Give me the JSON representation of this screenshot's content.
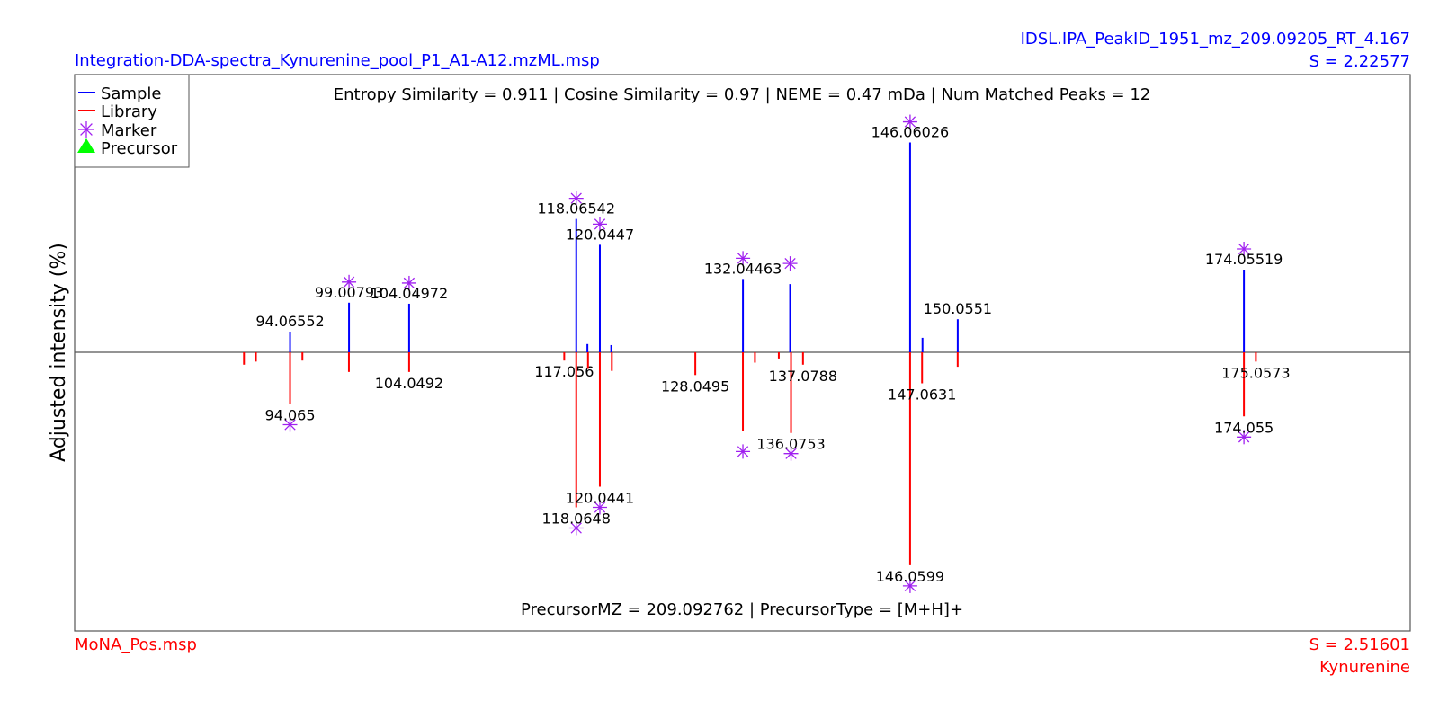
{
  "header": {
    "sample_file": "Integration-DDA-spectra_Kynurenine_pool_P1_A1-A12.mzML.msp",
    "peak_id": "IDSL.IPA_PeakID_1951_mz_209.09205_RT_4.167",
    "sample_score": "S = 2.22577"
  },
  "footer": {
    "library_file": "MoNA_Pos.msp",
    "library_score": "S = 2.51601",
    "compound": "Kynurenine"
  },
  "colors": {
    "sample": "#0000ff",
    "library": "#ff0000",
    "marker": "#a020f0",
    "precursor": "#00ff00",
    "baseline": "#555555"
  },
  "chart_data": {
    "type": "bar",
    "ylabel": "Adjusted intensity (%)",
    "info_top": "Entropy Similarity = 0.911 | Cosine Similarity = 0.97 | NEME = 0.47 mDa | Num Matched Peaks = 12",
    "info_bottom": "PrecursorMZ = 209.092762 | PrecursorType = [M+H]+",
    "xlim": [
      76,
      188
    ],
    "ylim": [
      -110,
      110
    ],
    "legend": {
      "position": "top-left",
      "items": [
        {
          "label": "Sample",
          "symbol": "line",
          "color": "#0000ff"
        },
        {
          "label": "Library",
          "symbol": "line",
          "color": "#ff0000"
        },
        {
          "label": "Marker",
          "symbol": "asterisk",
          "color": "#a020f0"
        },
        {
          "label": "Precursor",
          "symbol": "triangle",
          "color": "#00ff00"
        }
      ]
    },
    "series": [
      {
        "name": "Sample",
        "peaks": [
          {
            "mz": 94.06552,
            "intensity": 10,
            "label": "94.06552",
            "marker": false
          },
          {
            "mz": 99.00793,
            "intensity": 24,
            "label": "99.00793",
            "marker": true
          },
          {
            "mz": 104.04972,
            "intensity": 23.5,
            "label": "104.04972",
            "marker": true
          },
          {
            "mz": 118.06542,
            "intensity": 64.5,
            "label": "118.06542",
            "marker": true
          },
          {
            "mz": 119.0,
            "intensity": 4,
            "label": "",
            "marker": false
          },
          {
            "mz": 120.0447,
            "intensity": 52,
            "label": "120.0447",
            "marker": true
          },
          {
            "mz": 121.0,
            "intensity": 3.5,
            "label": "",
            "marker": false
          },
          {
            "mz": 132.04463,
            "intensity": 35.5,
            "label": "132.04463",
            "marker": true
          },
          {
            "mz": 136.0,
            "intensity": 33,
            "label": "",
            "marker": true
          },
          {
            "mz": 146.06026,
            "intensity": 101.5,
            "label": "146.06026",
            "marker": true
          },
          {
            "mz": 147.1,
            "intensity": 7,
            "label": "",
            "marker": false
          },
          {
            "mz": 150.0551,
            "intensity": 16,
            "label": "150.0551",
            "marker": false
          },
          {
            "mz": 174.05519,
            "intensity": 40,
            "label": "174.05519",
            "marker": true
          }
        ]
      },
      {
        "name": "Library",
        "peaks": [
          {
            "mz": 90.2,
            "intensity": 6,
            "label": "",
            "marker": false
          },
          {
            "mz": 91.2,
            "intensity": 4.5,
            "label": "",
            "marker": false
          },
          {
            "mz": 94.065,
            "intensity": 25,
            "label": "94.065",
            "marker": true
          },
          {
            "mz": 95.1,
            "intensity": 4,
            "label": "",
            "marker": false
          },
          {
            "mz": 99.0,
            "intensity": 9.5,
            "label": "",
            "marker": false
          },
          {
            "mz": 104.0492,
            "intensity": 9.5,
            "label": "104.0492",
            "marker": false
          },
          {
            "mz": 117.056,
            "intensity": 4,
            "label": "117.056",
            "marker": false
          },
          {
            "mz": 118.0648,
            "intensity": 75,
            "label": "118.0648",
            "marker": true
          },
          {
            "mz": 119.05,
            "intensity": 8,
            "label": "",
            "marker": false
          },
          {
            "mz": 120.0441,
            "intensity": 65,
            "label": "120.0441",
            "marker": true
          },
          {
            "mz": 121.05,
            "intensity": 9,
            "label": "",
            "marker": false
          },
          {
            "mz": 128.0495,
            "intensity": 11,
            "label": "128.0495",
            "marker": false
          },
          {
            "mz": 132.04,
            "intensity": 38,
            "label": "",
            "marker": true
          },
          {
            "mz": 133.05,
            "intensity": 5,
            "label": "",
            "marker": false
          },
          {
            "mz": 135.05,
            "intensity": 3,
            "label": "",
            "marker": false
          },
          {
            "mz": 136.0753,
            "intensity": 39,
            "label": "136.0753",
            "marker": true
          },
          {
            "mz": 137.0788,
            "intensity": 6,
            "label": "137.0788",
            "marker": false
          },
          {
            "mz": 146.0599,
            "intensity": 103,
            "label": "146.0599",
            "marker": true
          },
          {
            "mz": 147.0631,
            "intensity": 15,
            "label": "147.0631",
            "marker": false
          },
          {
            "mz": 150.05,
            "intensity": 7,
            "label": "",
            "marker": false
          },
          {
            "mz": 174.055,
            "intensity": 31,
            "label": "174.055",
            "marker": true
          },
          {
            "mz": 175.0573,
            "intensity": 4.5,
            "label": "175.0573",
            "marker": false
          }
        ]
      }
    ]
  }
}
